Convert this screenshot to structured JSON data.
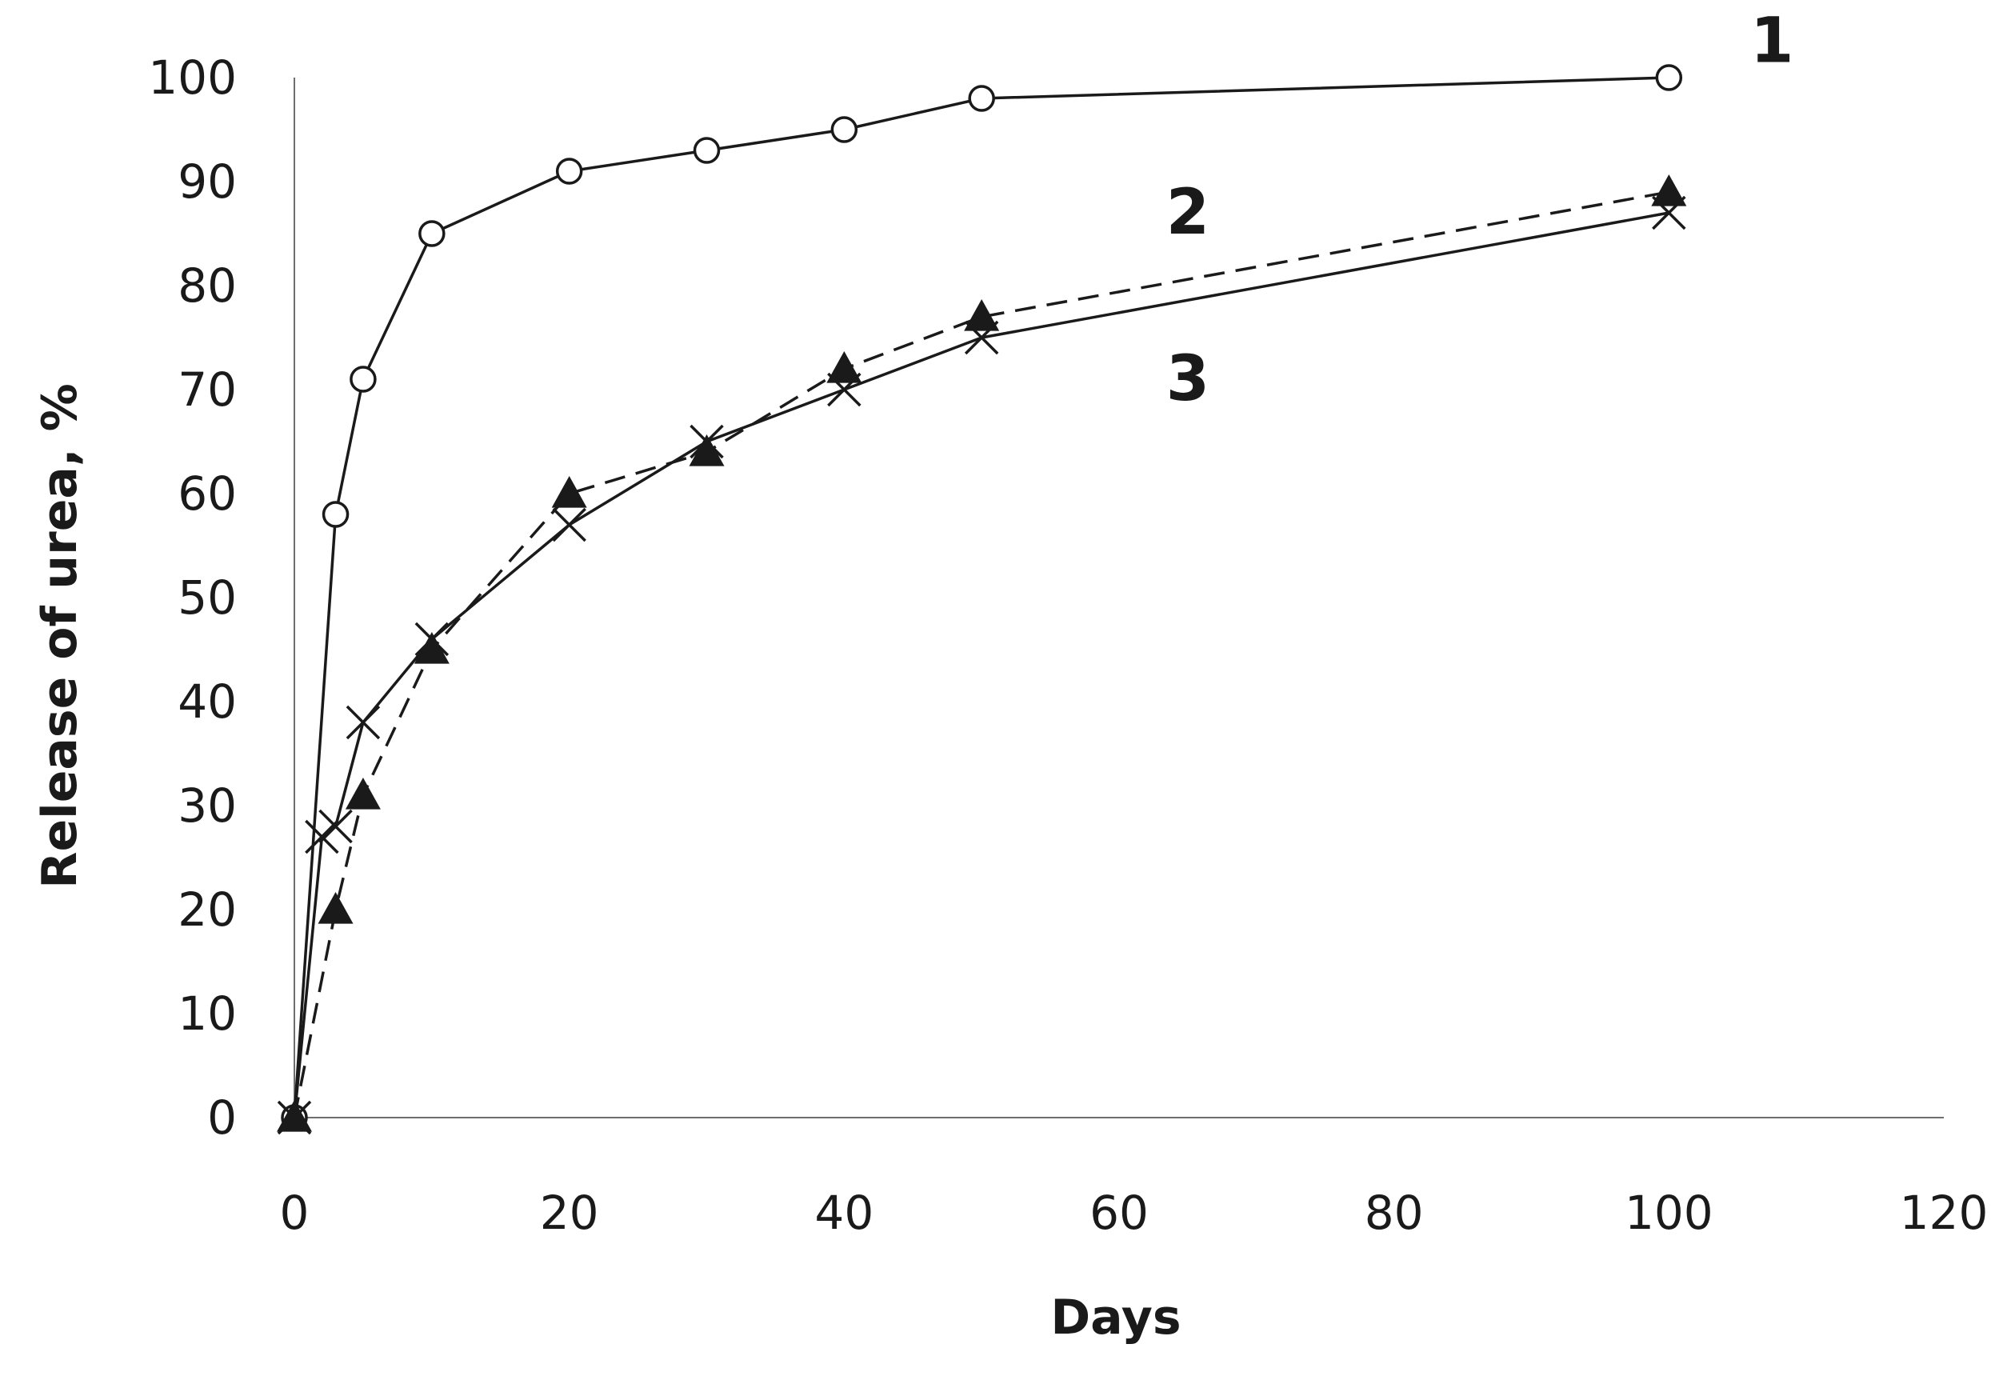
{
  "chart_data": {
    "type": "line",
    "title": "",
    "xlabel": "Days",
    "ylabel": "Release of urea,   %",
    "xlim": [
      0,
      120
    ],
    "ylim": [
      0,
      100
    ],
    "x_ticks": [
      0,
      20,
      40,
      60,
      80,
      100,
      120
    ],
    "y_ticks": [
      0,
      10,
      20,
      30,
      40,
      50,
      60,
      70,
      80,
      90,
      100
    ],
    "grid": false,
    "legend": "inline labels",
    "series": [
      {
        "name": "1",
        "marker": "open-circle",
        "line": "solid",
        "color": "#1a1a1a",
        "x": [
          0,
          3,
          5,
          10,
          20,
          30,
          40,
          50,
          100
        ],
        "y": [
          0,
          58,
          71,
          85,
          91,
          93,
          95,
          98,
          100
        ]
      },
      {
        "name": "2",
        "marker": "filled-triangle",
        "line": "dashed",
        "color": "#1a1a1a",
        "x": [
          0,
          3,
          5,
          10,
          20,
          30,
          40,
          50,
          100
        ],
        "y": [
          0,
          20,
          31,
          45,
          60,
          64,
          72,
          77,
          89
        ]
      },
      {
        "name": "3",
        "marker": "x",
        "line": "solid",
        "color": "#1a1a1a",
        "x": [
          0,
          2,
          3,
          5,
          10,
          20,
          30,
          40,
          50,
          100
        ],
        "y": [
          0,
          27,
          28,
          38,
          46,
          57,
          65,
          70,
          75,
          87
        ]
      }
    ]
  }
}
